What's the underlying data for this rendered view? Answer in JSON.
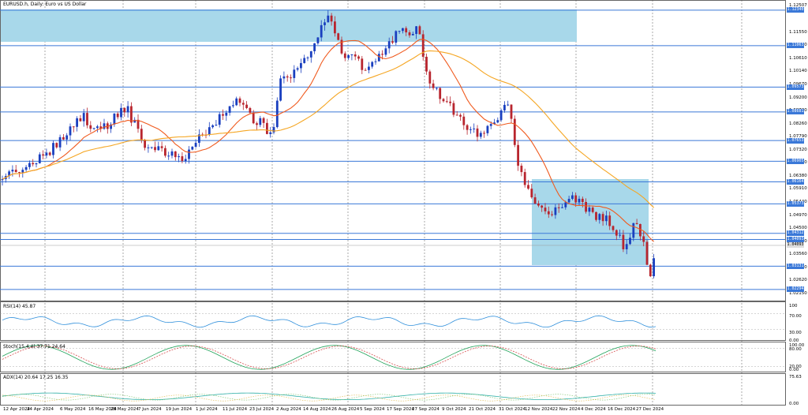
{
  "window": {
    "title": "EURUSD.h, Daily: Euro vs US Dollar"
  },
  "price_axis": {
    "labels": [
      "1.12507",
      "1.11550",
      "1.11080",
      "1.10610",
      "1.10140",
      "1.09670",
      "1.09200",
      "1.08730",
      "1.08260",
      "1.07790",
      "1.07320",
      "1.06850",
      "1.06380",
      "1.05910",
      "1.05440",
      "1.04970",
      "1.04500",
      "1.04030",
      "1.03560",
      "1.03090",
      "1.02620",
      "1.02150"
    ],
    "levels": [
      "1.12340",
      "1.11063",
      "1.09573",
      "1.08681",
      "1.07653",
      "1.06905",
      "1.06164",
      "1.05373",
      "1.04312",
      "1.04093",
      "1.03131",
      "1.02294"
    ]
  },
  "rsi": {
    "title": "RSI(14) 45.87",
    "axis": [
      "100",
      "70.00",
      "30.00",
      "0.00"
    ]
  },
  "stoch": {
    "title": "Stoch(15,4,4) 37.71 24.64",
    "axis": [
      "100.00",
      "80.00",
      "20.00",
      "0.00"
    ]
  },
  "adx": {
    "title": "ADX(14) 20.64 17.25 16.35",
    "axis": [
      "75.63",
      "0.00"
    ]
  },
  "dates": [
    "12 Apr 2024",
    "24 Apr 2024",
    "6 May 2024",
    "16 May 2024",
    "28 May 2024",
    "7 Jun 2024",
    "19 Jun 2024",
    "1 Jul 2024",
    "11 Jul 2024",
    "23 Jul 2024",
    "2 Aug 2024",
    "14 Aug 2024",
    "26 Aug 2024",
    "5 Sep 2024",
    "17 Sep 2024",
    "27 Sep 2024",
    "9 Oct 2024",
    "21 Oct 2024",
    "31 Oct 2024",
    "12 Nov 2024",
    "22 Nov 2024",
    "4 Dec 2024",
    "16 Dec 2024",
    "27 Dec 2024"
  ],
  "colors": {
    "bull": "#1a3fbf",
    "bear": "#b8252e",
    "ma_fast": "#f05a1e",
    "ma_slow": "#f5a623",
    "zone": "#a8d8ea",
    "level": "#3a78d8"
  }
}
